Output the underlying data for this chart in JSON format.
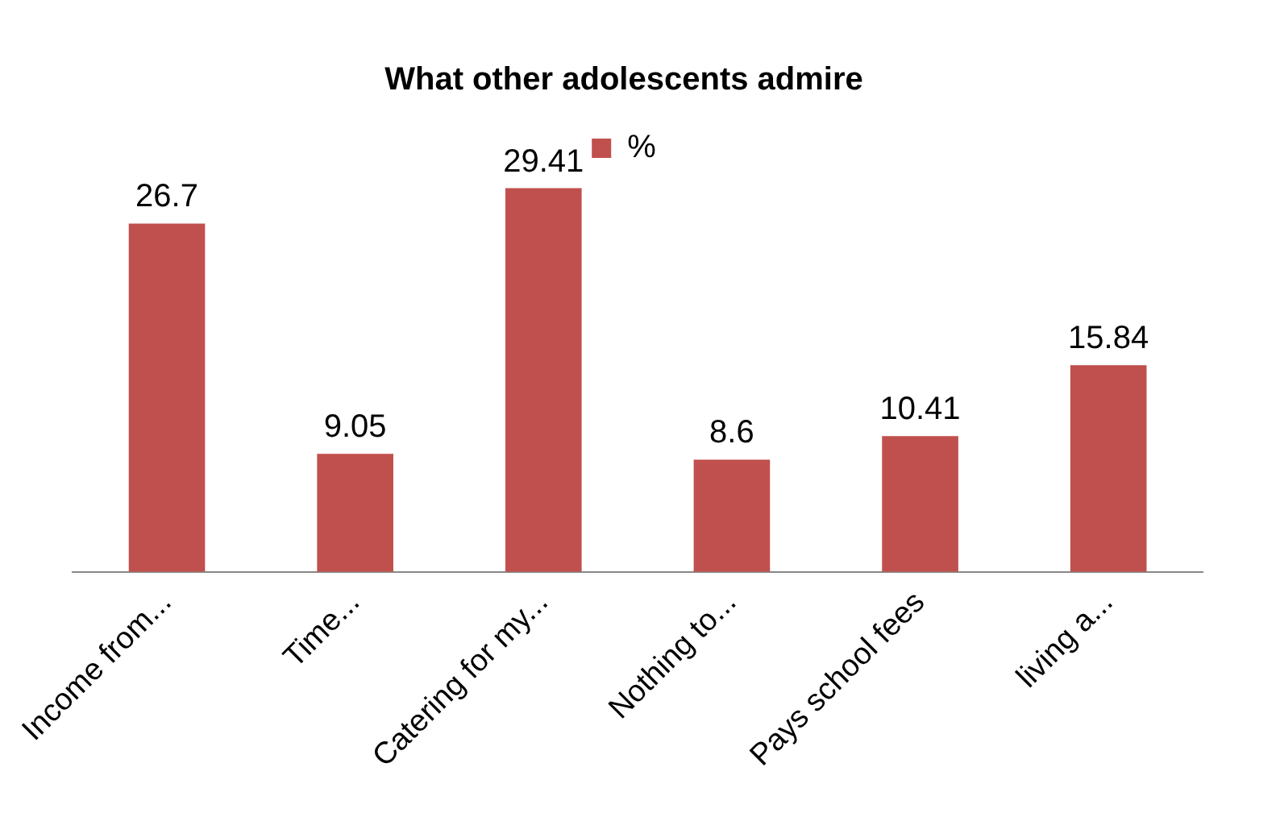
{
  "chart_data": {
    "type": "bar",
    "title": "What other adolescents admire",
    "categories": [
      "Income from...",
      "Time...",
      "Catering for my...",
      "Nothing to...",
      "Pays school fees",
      "living a..."
    ],
    "series": [
      {
        "name": "%",
        "color": "#c0504d",
        "values": [
          26.7,
          9.05,
          29.41,
          8.6,
          10.41,
          15.84
        ]
      }
    ],
    "data_labels": true,
    "legend": "top",
    "grid": false
  }
}
